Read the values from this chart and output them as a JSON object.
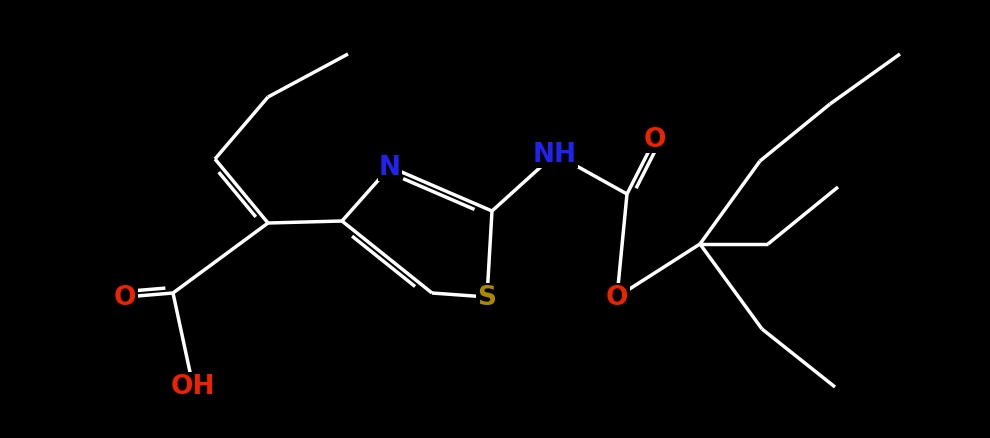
{
  "bg": "#000000",
  "bc": "#ffffff",
  "lw": 2.5,
  "colors": {
    "N": "#2222ee",
    "O": "#ee2200",
    "S": "#aa8800",
    "C": "#ffffff"
  },
  "fs": 19,
  "figsize": [
    9.9,
    4.39
  ],
  "dpi": 100,
  "xlim": [
    0,
    9.9
  ],
  "ylim": [
    0,
    4.39
  ]
}
